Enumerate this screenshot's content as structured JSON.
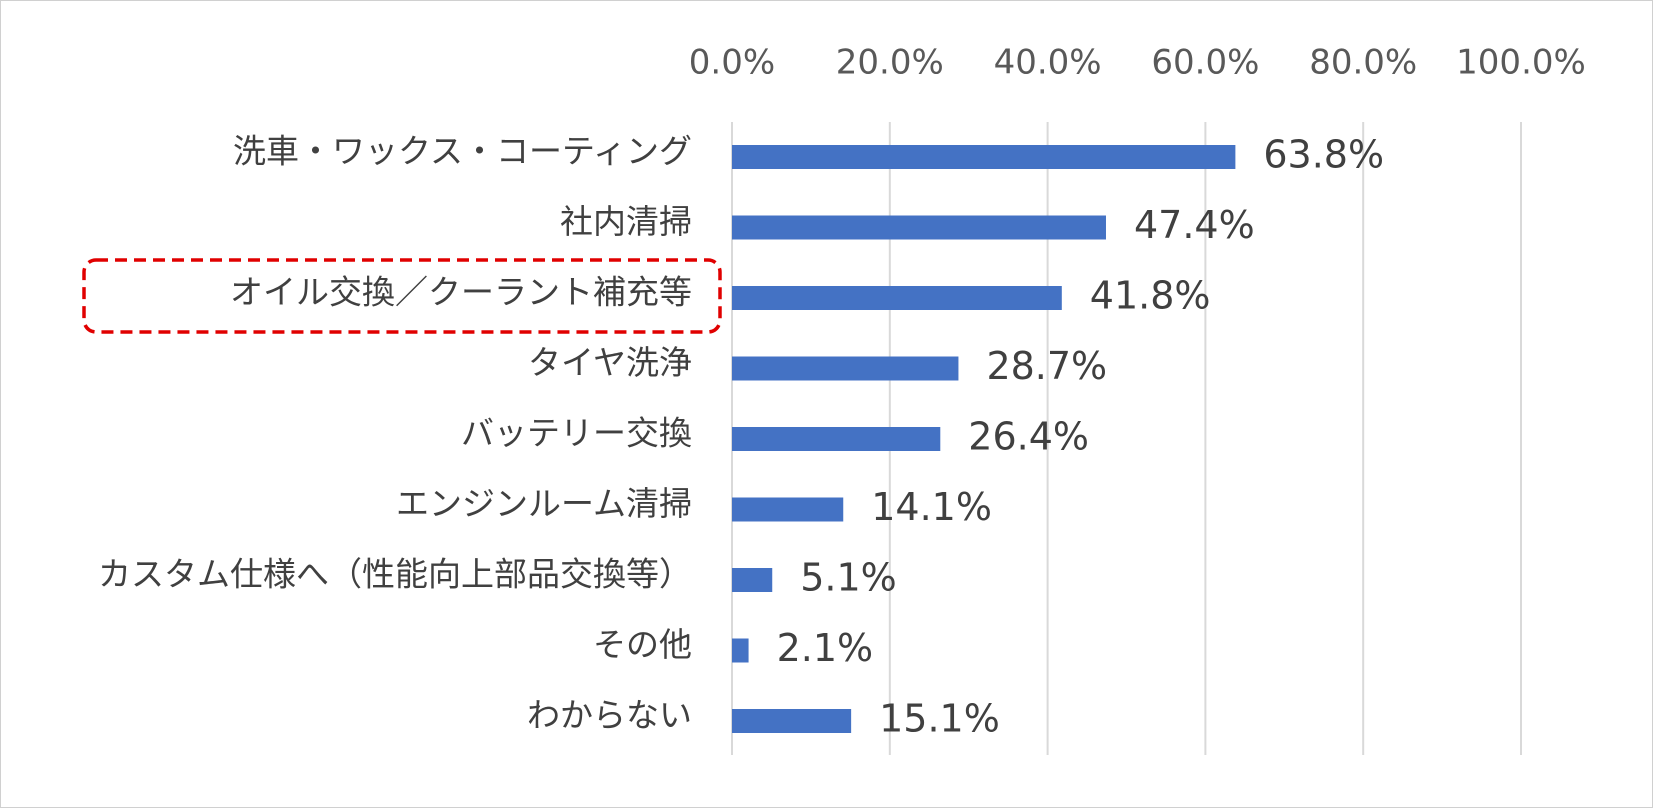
{
  "chart_data": {
    "type": "bar",
    "orientation": "horizontal",
    "categories": [
      "洗車・ワックス・コーティング",
      "社内清掃",
      "オイル交換／クーラント補充等",
      "タイヤ洗浄",
      "バッテリー交換",
      "エンジンルーム清掃",
      "カスタム仕様へ（性能向上部品交換等）",
      "その他",
      "わからない"
    ],
    "values": [
      63.8,
      47.4,
      41.8,
      28.7,
      26.4,
      14.1,
      5.1,
      2.1,
      15.1
    ],
    "value_labels": [
      "63.8%",
      "47.4%",
      "41.8%",
      "28.7%",
      "26.4%",
      "14.1%",
      "5.1%",
      "2.1%",
      "15.1%"
    ],
    "xlim": [
      0,
      100
    ],
    "x_ticks": [
      0,
      20,
      40,
      60,
      80,
      100
    ],
    "x_tick_labels": [
      "0.0%",
      "20.0%",
      "40.0%",
      "60.0%",
      "80.0%",
      "100.0%"
    ],
    "x_axis_position": "top",
    "grid": true,
    "bar_color": "#4472c4",
    "grid_color": "#d9d9d9",
    "highlight": {
      "category_index": 2,
      "style": "dashed-rounded-box",
      "color": "#e00000"
    }
  }
}
